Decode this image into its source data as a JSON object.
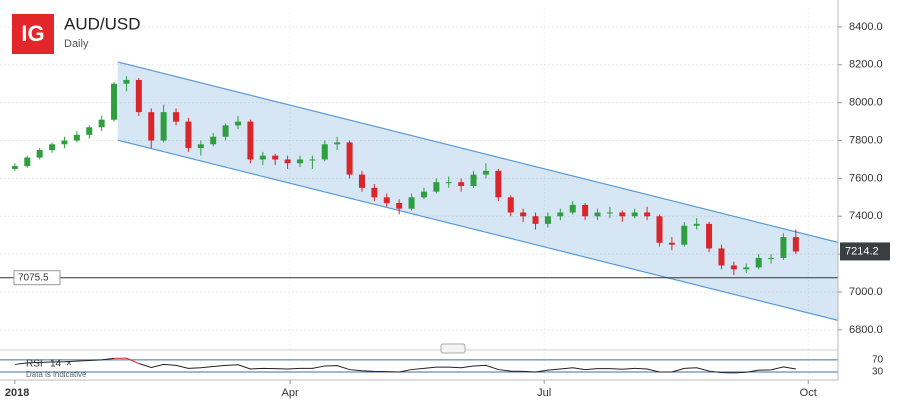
{
  "header": {
    "logo": "IG",
    "title": "AUD/USD",
    "subtitle": "Daily"
  },
  "chart_data": {
    "type": "candlestick",
    "candles": [
      [
        7650,
        7680,
        7640,
        7665
      ],
      [
        7665,
        7720,
        7655,
        7710
      ],
      [
        7710,
        7760,
        7700,
        7750
      ],
      [
        7750,
        7790,
        7735,
        7780
      ],
      [
        7780,
        7820,
        7760,
        7800
      ],
      [
        7800,
        7850,
        7790,
        7830
      ],
      [
        7830,
        7880,
        7810,
        7870
      ],
      [
        7870,
        7930,
        7850,
        7910
      ],
      [
        7910,
        8110,
        7900,
        8100
      ],
      [
        8100,
        8140,
        8060,
        8120
      ],
      [
        8120,
        8130,
        7930,
        7950
      ],
      [
        7950,
        7970,
        7760,
        7800
      ],
      [
        7800,
        7990,
        7790,
        7950
      ],
      [
        7950,
        7970,
        7880,
        7900
      ],
      [
        7900,
        7920,
        7740,
        7760
      ],
      [
        7760,
        7800,
        7720,
        7780
      ],
      [
        7780,
        7840,
        7770,
        7820
      ],
      [
        7820,
        7890,
        7800,
        7880
      ],
      [
        7880,
        7930,
        7860,
        7900
      ],
      [
        7900,
        7910,
        7680,
        7700
      ],
      [
        7700,
        7740,
        7670,
        7720
      ],
      [
        7720,
        7730,
        7670,
        7700
      ],
      [
        7700,
        7720,
        7650,
        7680
      ],
      [
        7680,
        7720,
        7660,
        7700
      ],
      [
        7700,
        7720,
        7650,
        7700
      ],
      [
        7700,
        7800,
        7690,
        7780
      ],
      [
        7780,
        7820,
        7750,
        7790
      ],
      [
        7790,
        7800,
        7600,
        7620
      ],
      [
        7620,
        7640,
        7530,
        7550
      ],
      [
        7550,
        7570,
        7480,
        7500
      ],
      [
        7500,
        7520,
        7450,
        7470
      ],
      [
        7470,
        7490,
        7410,
        7440
      ],
      [
        7440,
        7520,
        7430,
        7500
      ],
      [
        7500,
        7550,
        7490,
        7530
      ],
      [
        7530,
        7600,
        7520,
        7580
      ],
      [
        7580,
        7610,
        7550,
        7580
      ],
      [
        7580,
        7600,
        7530,
        7560
      ],
      [
        7560,
        7640,
        7550,
        7620
      ],
      [
        7620,
        7680,
        7600,
        7640
      ],
      [
        7640,
        7650,
        7480,
        7500
      ],
      [
        7500,
        7510,
        7400,
        7420
      ],
      [
        7420,
        7440,
        7370,
        7400
      ],
      [
        7400,
        7420,
        7330,
        7360
      ],
      [
        7360,
        7420,
        7340,
        7400
      ],
      [
        7400,
        7440,
        7380,
        7420
      ],
      [
        7420,
        7480,
        7410,
        7460
      ],
      [
        7460,
        7470,
        7380,
        7400
      ],
      [
        7400,
        7440,
        7380,
        7420
      ],
      [
        7420,
        7450,
        7390,
        7420
      ],
      [
        7420,
        7430,
        7370,
        7400
      ],
      [
        7400,
        7440,
        7390,
        7420
      ],
      [
        7420,
        7450,
        7380,
        7400
      ],
      [
        7400,
        7410,
        7240,
        7260
      ],
      [
        7260,
        7290,
        7220,
        7250
      ],
      [
        7250,
        7370,
        7240,
        7350
      ],
      [
        7350,
        7390,
        7330,
        7360
      ],
      [
        7360,
        7370,
        7210,
        7230
      ],
      [
        7230,
        7250,
        7120,
        7140
      ],
      [
        7140,
        7160,
        7090,
        7120
      ],
      [
        7120,
        7150,
        7100,
        7130
      ],
      [
        7130,
        7200,
        7120,
        7180
      ],
      [
        7180,
        7200,
        7150,
        7180
      ],
      [
        7180,
        7310,
        7170,
        7290
      ],
      [
        7290,
        7330,
        7200,
        7214.2
      ]
    ],
    "up_color": "#2e9e3f",
    "down_color": "#d9262b",
    "xlim": [
      -1.2,
      66.4
    ],
    "xticks": [
      {
        "value": 0,
        "label": "2018"
      },
      {
        "value": 22.2,
        "label": "Apr"
      },
      {
        "value": 42.7,
        "label": "Jul"
      },
      {
        "value": 64,
        "label": "Oct"
      }
    ],
    "ylim": [
      6720,
      8500
    ],
    "yticks": [
      {
        "value": 6800,
        "label": "6800.0"
      },
      {
        "value": 7000,
        "label": "7000.0"
      },
      {
        "value": 7200,
        "label": "7200.0"
      },
      {
        "value": 7400,
        "label": "7400.0"
      },
      {
        "value": 7600,
        "label": "7600.0"
      },
      {
        "value": 7800,
        "label": "7800.0"
      },
      {
        "value": 8000,
        "label": "8000.0"
      },
      {
        "value": 8200,
        "label": "8200.0"
      },
      {
        "value": 8400,
        "label": "8400.0"
      }
    ],
    "grid": true,
    "channel": {
      "color": "#5b9bd5",
      "x": [
        8.3,
        66.4
      ],
      "upper": [
        8215,
        7262
      ],
      "lower": [
        7802,
        6850
      ]
    },
    "level": 7075.5,
    "rsi": {
      "name": "RSI",
      "period": 14,
      "close": "×",
      "note": "Data is indicative",
      "values": [
        55,
        60,
        62,
        63,
        64,
        66,
        68,
        70,
        75,
        76,
        58,
        45,
        55,
        52,
        42,
        44,
        48,
        52,
        54,
        40,
        42,
        41,
        40,
        42,
        42,
        50,
        51,
        38,
        34,
        32,
        31,
        30,
        38,
        42,
        46,
        46,
        44,
        50,
        52,
        38,
        33,
        32,
        30,
        36,
        40,
        44,
        38,
        41,
        41,
        39,
        42,
        40,
        30,
        30,
        42,
        44,
        33,
        28,
        27,
        29,
        36,
        37,
        47,
        40
      ],
      "ylim": [
        10,
        83
      ],
      "yticks": [
        30,
        70
      ],
      "color": "#222",
      "overbought_color": "#d9262b"
    }
  }
}
